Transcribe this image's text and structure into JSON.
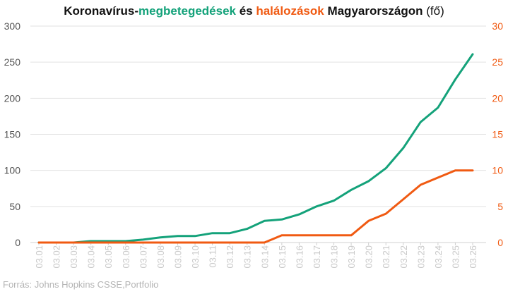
{
  "title": {
    "part1": "Koronavírus-",
    "part2": "megbetegedések",
    "part3": " és ",
    "part4": "halálozások",
    "part5": " Magyarországon  ",
    "part6": "(fő)"
  },
  "source": "Forrás: Johns Hopkins CSSE,Portfolio",
  "colors": {
    "cases": "#14a27a",
    "deaths": "#f05a12",
    "axis_text": "#555555",
    "date_text": "#c8c8c8",
    "grid": "#e2e2e2"
  },
  "chart_data": {
    "type": "line",
    "categories": [
      "03.01",
      "03.02",
      "03.03",
      "03.04",
      "03.05",
      "03.06",
      "03.07",
      "03.08",
      "03.09",
      "03.10",
      "03.11",
      "03.12",
      "03.13",
      "03.14",
      "03.15",
      "03.16",
      "03.17",
      "03.18",
      "03.19",
      "03.20",
      "03.21",
      "03.22",
      "03.23",
      "03.24",
      "03.25",
      "03.26"
    ],
    "series": [
      {
        "name": "megbetegedések",
        "axis": "left",
        "color": "#14a27a",
        "values": [
          0,
          0,
          0,
          2,
          2,
          2,
          4,
          7,
          9,
          9,
          13,
          13,
          19,
          30,
          32,
          39,
          50,
          58,
          73,
          85,
          103,
          131,
          167,
          187,
          226,
          261
        ]
      },
      {
        "name": "halálozások",
        "axis": "right",
        "color": "#f05a12",
        "values": [
          0,
          0,
          0,
          0,
          0,
          0,
          0,
          0,
          0,
          0,
          0,
          0,
          0,
          0,
          1,
          1,
          1,
          1,
          1,
          3,
          4,
          6,
          8,
          9,
          10,
          10
        ]
      }
    ],
    "y_left": {
      "min": 0,
      "max": 300,
      "ticks": [
        0,
        50,
        100,
        150,
        200,
        250,
        300
      ]
    },
    "y_right": {
      "min": 0,
      "max": 30,
      "ticks": [
        0,
        5,
        10,
        15,
        20,
        25,
        30
      ]
    },
    "grid": true,
    "legend": "none"
  }
}
